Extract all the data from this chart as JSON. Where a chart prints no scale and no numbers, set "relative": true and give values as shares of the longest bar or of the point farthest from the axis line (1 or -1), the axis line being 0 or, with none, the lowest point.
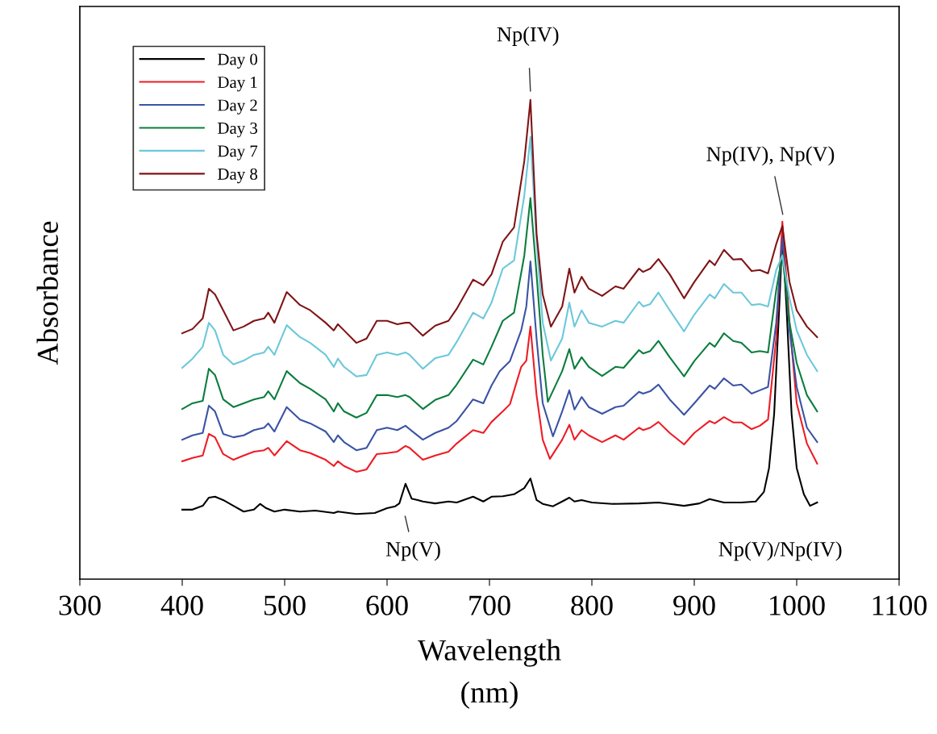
{
  "chart_data": {
    "type": "line",
    "xlabel": "Wavelength\n(nm)",
    "ylabel": "Absorbance",
    "relative": true,
    "xlim": [
      300,
      1100
    ],
    "xticks": [
      300,
      400,
      500,
      600,
      700,
      800,
      900,
      1000,
      1100
    ],
    "grid": false,
    "legend": "top left",
    "marker": "none",
    "line_style": "solid",
    "series": [
      {
        "name": "Day 0",
        "color": "#000000",
        "x": [
          400,
          410,
          420,
          426,
          432,
          440,
          450,
          460,
          470,
          476,
          482,
          490,
          500,
          515,
          530,
          548,
          552,
          570,
          588,
          600,
          608,
          612,
          618,
          624,
          630,
          635,
          647,
          660,
          668,
          684,
          694,
          702,
          713,
          724,
          734,
          740,
          746,
          752,
          762,
          771,
          778,
          783,
          790,
          800,
          820,
          846,
          865,
          876,
          890,
          905,
          915,
          929,
          946,
          960,
          968,
          973,
          978,
          983,
          986,
          990,
          995,
          1000,
          1007,
          1013,
          1020
        ],
        "values": [
          0.145,
          0.145,
          0.153,
          0.17,
          0.172,
          0.165,
          0.153,
          0.141,
          0.145,
          0.157,
          0.148,
          0.141,
          0.145,
          0.141,
          0.143,
          0.138,
          0.141,
          0.136,
          0.138,
          0.148,
          0.152,
          0.158,
          0.199,
          0.168,
          0.165,
          0.162,
          0.158,
          0.162,
          0.16,
          0.172,
          0.162,
          0.172,
          0.173,
          0.177,
          0.19,
          0.21,
          0.165,
          0.157,
          0.152,
          0.162,
          0.17,
          0.162,
          0.165,
          0.16,
          0.157,
          0.158,
          0.16,
          0.157,
          0.153,
          0.158,
          0.167,
          0.16,
          0.16,
          0.162,
          0.182,
          0.232,
          0.345,
          0.569,
          0.717,
          0.569,
          0.345,
          0.232,
          0.177,
          0.153,
          0.16
        ]
      },
      {
        "name": "Day 1",
        "color": "#ee1c25",
        "x": [
          400,
          410,
          420,
          426,
          432,
          440,
          450,
          460,
          470,
          480,
          484,
          490,
          502,
          515,
          525,
          540,
          548,
          552,
          558,
          570,
          580,
          590,
          600,
          610,
          618,
          622,
          635,
          647,
          660,
          668,
          684,
          694,
          702,
          713,
          720,
          731,
          736,
          740,
          746,
          752,
          759,
          771,
          778,
          783,
          790,
          797,
          810,
          823,
          831,
          846,
          850,
          857,
          865,
          876,
          890,
          900,
          915,
          920,
          929,
          938,
          946,
          956,
          964,
          972,
          980,
          986,
          993,
          1000,
          1010,
          1020
        ],
        "values": [
          0.246,
          0.253,
          0.258,
          0.303,
          0.296,
          0.261,
          0.249,
          0.258,
          0.266,
          0.269,
          0.274,
          0.258,
          0.288,
          0.269,
          0.263,
          0.249,
          0.236,
          0.246,
          0.236,
          0.224,
          0.229,
          0.261,
          0.263,
          0.266,
          0.278,
          0.274,
          0.249,
          0.258,
          0.266,
          0.283,
          0.311,
          0.305,
          0.328,
          0.35,
          0.365,
          0.443,
          0.456,
          0.527,
          0.384,
          0.291,
          0.251,
          0.291,
          0.322,
          0.291,
          0.311,
          0.3,
          0.286,
          0.3,
          0.291,
          0.316,
          0.311,
          0.316,
          0.328,
          0.305,
          0.281,
          0.305,
          0.33,
          0.325,
          0.338,
          0.327,
          0.327,
          0.313,
          0.32,
          0.333,
          0.502,
          0.746,
          0.535,
          0.367,
          0.283,
          0.241
        ]
      },
      {
        "name": "Day 2",
        "color": "#3a53a4",
        "x": [
          400,
          410,
          420,
          426,
          432,
          440,
          450,
          460,
          470,
          480,
          484,
          490,
          502,
          515,
          525,
          540,
          548,
          552,
          558,
          570,
          580,
          590,
          600,
          610,
          618,
          622,
          635,
          647,
          660,
          668,
          684,
          694,
          702,
          710,
          720,
          731,
          736,
          740,
          746,
          752,
          762,
          771,
          778,
          783,
          790,
          797,
          810,
          823,
          831,
          846,
          850,
          857,
          865,
          876,
          890,
          900,
          915,
          920,
          929,
          938,
          946,
          956,
          964,
          972,
          980,
          986,
          993,
          1000,
          1010,
          1020
        ],
        "values": [
          0.291,
          0.3,
          0.305,
          0.362,
          0.35,
          0.303,
          0.296,
          0.3,
          0.311,
          0.316,
          0.325,
          0.308,
          0.359,
          0.333,
          0.325,
          0.308,
          0.286,
          0.3,
          0.286,
          0.269,
          0.274,
          0.311,
          0.316,
          0.311,
          0.32,
          0.313,
          0.291,
          0.305,
          0.316,
          0.33,
          0.375,
          0.367,
          0.404,
          0.434,
          0.455,
          0.519,
          0.569,
          0.663,
          0.502,
          0.367,
          0.298,
          0.35,
          0.394,
          0.354,
          0.38,
          0.359,
          0.345,
          0.359,
          0.362,
          0.391,
          0.387,
          0.392,
          0.406,
          0.375,
          0.343,
          0.367,
          0.404,
          0.397,
          0.419,
          0.404,
          0.406,
          0.387,
          0.394,
          0.401,
          0.535,
          0.712,
          0.519,
          0.401,
          0.316,
          0.286
        ]
      },
      {
        "name": "Day 3",
        "color": "#0b7d3e",
        "x": [
          400,
          410,
          420,
          426,
          432,
          440,
          450,
          460,
          470,
          480,
          484,
          490,
          502,
          515,
          525,
          540,
          548,
          552,
          558,
          570,
          580,
          590,
          600,
          610,
          618,
          622,
          635,
          647,
          660,
          668,
          684,
          694,
          702,
          713,
          724,
          734,
          740,
          746,
          752,
          757,
          771,
          778,
          783,
          790,
          797,
          810,
          823,
          831,
          846,
          850,
          857,
          865,
          876,
          890,
          900,
          915,
          920,
          929,
          938,
          946,
          956,
          964,
          972,
          980,
          986,
          993,
          1000,
          1010,
          1020
        ],
        "values": [
          0.355,
          0.367,
          0.372,
          0.439,
          0.426,
          0.375,
          0.359,
          0.367,
          0.375,
          0.38,
          0.392,
          0.375,
          0.434,
          0.409,
          0.397,
          0.375,
          0.35,
          0.367,
          0.35,
          0.337,
          0.347,
          0.384,
          0.384,
          0.38,
          0.384,
          0.38,
          0.355,
          0.374,
          0.384,
          0.406,
          0.458,
          0.448,
          0.485,
          0.539,
          0.556,
          0.675,
          0.795,
          0.636,
          0.468,
          0.37,
          0.434,
          0.48,
          0.439,
          0.463,
          0.443,
          0.424,
          0.443,
          0.441,
          0.478,
          0.471,
          0.476,
          0.497,
          0.463,
          0.423,
          0.455,
          0.493,
          0.485,
          0.513,
          0.497,
          0.493,
          0.473,
          0.476,
          0.473,
          0.603,
          0.678,
          0.535,
          0.451,
          0.384,
          0.35
        ]
      },
      {
        "name": "Day 7",
        "color": "#6bc8da",
        "x": [
          400,
          410,
          420,
          426,
          432,
          440,
          450,
          460,
          470,
          480,
          484,
          490,
          502,
          515,
          525,
          540,
          548,
          552,
          558,
          570,
          580,
          590,
          600,
          610,
          618,
          622,
          635,
          647,
          660,
          668,
          684,
          694,
          702,
          713,
          724,
          734,
          740,
          746,
          752,
          760,
          771,
          778,
          783,
          790,
          797,
          810,
          823,
          831,
          846,
          850,
          857,
          865,
          876,
          890,
          900,
          915,
          920,
          929,
          938,
          946,
          956,
          964,
          972,
          980,
          986,
          993,
          1000,
          1010,
          1020
        ],
        "values": [
          0.441,
          0.46,
          0.485,
          0.535,
          0.519,
          0.468,
          0.448,
          0.456,
          0.468,
          0.473,
          0.485,
          0.468,
          0.53,
          0.505,
          0.493,
          0.468,
          0.443,
          0.46,
          0.443,
          0.423,
          0.426,
          0.468,
          0.473,
          0.468,
          0.473,
          0.468,
          0.439,
          0.461,
          0.468,
          0.495,
          0.556,
          0.544,
          0.577,
          0.648,
          0.665,
          0.8,
          0.923,
          0.704,
          0.535,
          0.456,
          0.502,
          0.577,
          0.527,
          0.561,
          0.535,
          0.527,
          0.539,
          0.535,
          0.579,
          0.569,
          0.574,
          0.598,
          0.561,
          0.517,
          0.552,
          0.594,
          0.586,
          0.616,
          0.598,
          0.598,
          0.572,
          0.574,
          0.569,
          0.645,
          0.675,
          0.586,
          0.519,
          0.468,
          0.434
        ]
      },
      {
        "name": "Day 8",
        "color": "#7f1416",
        "x": [
          400,
          410,
          420,
          426,
          432,
          440,
          450,
          460,
          470,
          480,
          484,
          490,
          502,
          515,
          525,
          540,
          548,
          552,
          558,
          570,
          580,
          590,
          600,
          610,
          618,
          622,
          635,
          647,
          660,
          668,
          684,
          694,
          702,
          713,
          724,
          734,
          740,
          746,
          752,
          760,
          771,
          778,
          783,
          790,
          797,
          810,
          823,
          831,
          846,
          850,
          857,
          865,
          876,
          890,
          900,
          915,
          920,
          929,
          938,
          946,
          956,
          964,
          972,
          980,
          986,
          993,
          1000,
          1010,
          1020
        ],
        "values": [
          0.513,
          0.522,
          0.544,
          0.606,
          0.594,
          0.561,
          0.519,
          0.527,
          0.539,
          0.544,
          0.556,
          0.535,
          0.599,
          0.572,
          0.561,
          0.535,
          0.519,
          0.532,
          0.519,
          0.493,
          0.502,
          0.539,
          0.539,
          0.532,
          0.535,
          0.535,
          0.508,
          0.529,
          0.539,
          0.564,
          0.625,
          0.613,
          0.636,
          0.704,
          0.734,
          0.872,
          1.0,
          0.721,
          0.594,
          0.527,
          0.569,
          0.648,
          0.598,
          0.631,
          0.606,
          0.591,
          0.611,
          0.606,
          0.648,
          0.641,
          0.648,
          0.668,
          0.636,
          0.586,
          0.62,
          0.665,
          0.655,
          0.687,
          0.667,
          0.668,
          0.643,
          0.645,
          0.638,
          0.699,
          0.737,
          0.62,
          0.561,
          0.527,
          0.505
        ]
      }
    ],
    "annotations": [
      "Np(IV)",
      "Np(IV), Np(V)",
      "Np(V)",
      "Np(V)/Np(IV)"
    ]
  }
}
